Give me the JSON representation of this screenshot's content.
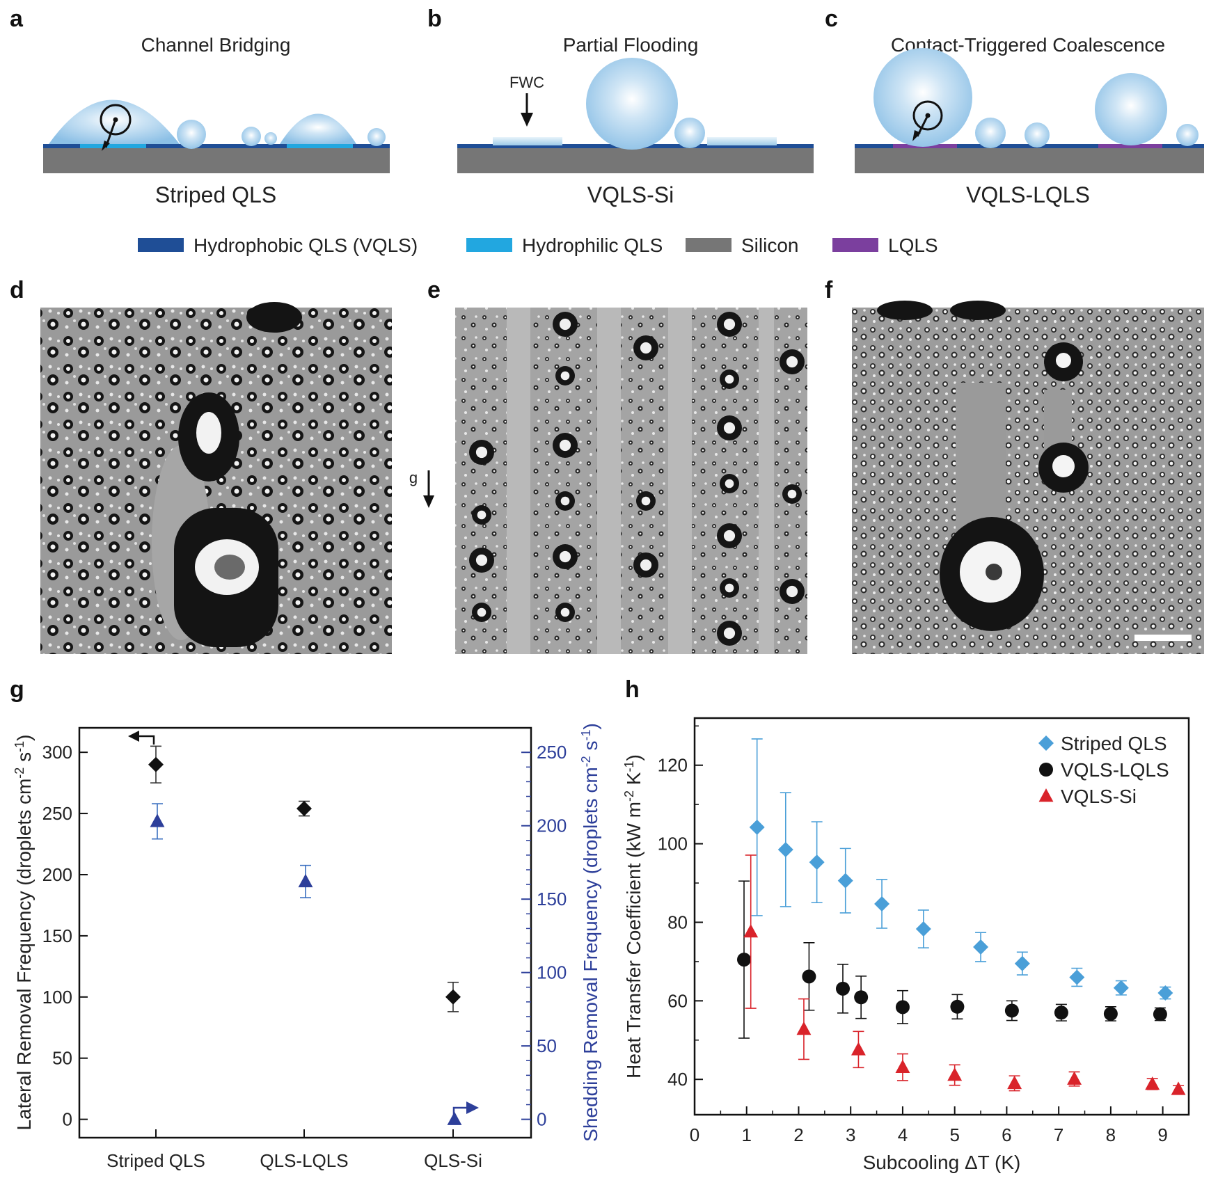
{
  "panels": {
    "a": {
      "label": "a",
      "title": "Channel Bridging",
      "caption": "Striped QLS"
    },
    "b": {
      "label": "b",
      "title": "Partial Flooding",
      "caption": "VQLS-Si",
      "annotation": "FWC"
    },
    "c": {
      "label": "c",
      "title": "Contact-Triggered Coalescence",
      "caption": "VQLS-LQLS"
    },
    "d": {
      "label": "d"
    },
    "e": {
      "label": "e",
      "gravity": "g"
    },
    "f": {
      "label": "f"
    },
    "g": {
      "label": "g"
    },
    "h": {
      "label": "h"
    }
  },
  "material_legend": [
    {
      "label": "Hydrophobic QLS (VQLS)",
      "color": "#1f4e96"
    },
    {
      "label": "Hydrophilic QLS",
      "color": "#22a7e0"
    },
    {
      "label": "Silicon",
      "color": "#767676"
    },
    {
      "label": "LQLS",
      "color": "#7b3f9e"
    }
  ],
  "colors": {
    "droplet": "#9ccae8",
    "substrate": "#767676",
    "blue_series": "#2d3f9a",
    "black_series": "#111111",
    "striped": "#4a9fd8",
    "red": "#d9232a"
  },
  "chart_data": [
    {
      "type": "scatter",
      "id": "g",
      "categories": [
        "Striped QLS",
        "QLS-LQLS",
        "QLS-Si"
      ],
      "ylabel": "Lateral Removal Frequency (droplets cm⁻² s⁻¹)",
      "ylabel_parts": [
        "Lateral Removal Frequency (droplets cm",
        "-2",
        " s",
        "-1",
        ")"
      ],
      "y2label": "Shedding Removal Frequency (droplets cm⁻² s⁻¹)",
      "y2label_parts": [
        "Shedding Removal Frequency (droplets cm",
        "-2",
        " s",
        "-1",
        ")"
      ],
      "ylim": [
        -15,
        320
      ],
      "y2lim": [
        -12.5,
        266.7
      ],
      "yticks": [
        0,
        50,
        100,
        150,
        200,
        250,
        300
      ],
      "y2ticks": [
        0,
        50,
        100,
        150,
        200,
        250
      ],
      "series": [
        {
          "name": "Lateral",
          "axis": "left",
          "marker": "diamond",
          "values": [
            290,
            254,
            100
          ],
          "errors": [
            15,
            6,
            12
          ]
        },
        {
          "name": "Shedding",
          "axis": "right",
          "marker": "triangle",
          "values": [
            203,
            162,
            0
          ],
          "errors": [
            12,
            11,
            0
          ]
        }
      ]
    },
    {
      "type": "scatter",
      "id": "h",
      "xlabel": "Subcooling  ΔT (K)",
      "ylabel": "Heat Transfer Coefficient (kW m⁻² K⁻¹)",
      "ylabel_parts": [
        "Heat Transfer Coefficient (kW m",
        "-2",
        " K",
        "-1",
        ")"
      ],
      "xlim": [
        0,
        9.5
      ],
      "ylim": [
        31,
        132
      ],
      "xticks": [
        0,
        1,
        2,
        3,
        4,
        5,
        6,
        7,
        8,
        9
      ],
      "yticks": [
        40,
        60,
        80,
        100,
        120
      ],
      "legend_position": "top-right",
      "series": [
        {
          "name": "Striped QLS",
          "marker": "diamond",
          "color": "#4a9fd8",
          "x": [
            1.2,
            1.75,
            2.35,
            2.9,
            3.6,
            4.4,
            5.5,
            6.3,
            7.35,
            8.2,
            9.05
          ],
          "y": [
            104.2,
            98.5,
            95.3,
            90.6,
            84.7,
            78.3,
            73.7,
            69.5,
            66.0,
            63.3,
            62.0
          ],
          "err": [
            22.5,
            14.5,
            10.3,
            8.2,
            6.2,
            4.8,
            3.7,
            2.9,
            2.3,
            1.8,
            1.5
          ]
        },
        {
          "name": "VQLS-LQLS",
          "marker": "circle",
          "color": "#111111",
          "x": [
            0.95,
            2.2,
            2.85,
            3.2,
            4.0,
            5.05,
            6.1,
            7.05,
            8.0,
            8.95
          ],
          "y": [
            70.5,
            66.2,
            63.1,
            60.9,
            58.4,
            58.5,
            57.5,
            57.0,
            56.7,
            56.6
          ],
          "err": [
            20.0,
            8.6,
            6.2,
            5.4,
            4.2,
            3.1,
            2.5,
            2.1,
            1.8,
            1.6
          ]
        },
        {
          "name": "VQLS-Si",
          "marker": "triangle",
          "color": "#d9232a",
          "x": [
            1.08,
            2.1,
            3.15,
            4.0,
            5.0,
            6.15,
            7.3,
            8.8,
            9.3
          ],
          "y": [
            77.6,
            52.8,
            47.6,
            43.1,
            41.1,
            39.0,
            40.1,
            38.8,
            37.5
          ],
          "err": [
            19.5,
            7.7,
            4.6,
            3.4,
            2.6,
            1.9,
            1.8,
            1.4,
            0.9
          ]
        }
      ]
    }
  ]
}
